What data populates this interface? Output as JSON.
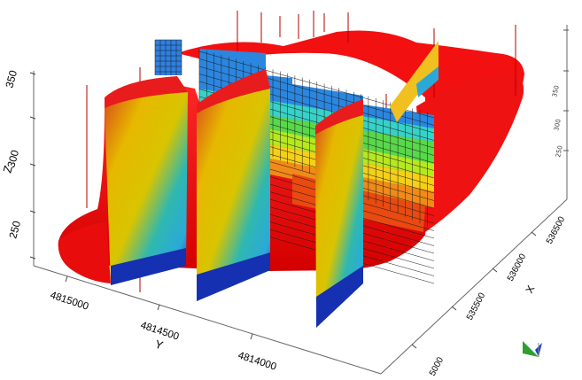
{
  "axes": {
    "z": {
      "label": "Z",
      "ticks": [
        "350",
        "300",
        "250"
      ],
      "right_ticks": [
        "350",
        "300",
        "250"
      ]
    },
    "y": {
      "label": "Y",
      "ticks": [
        "4815000",
        "4814500",
        "4814000"
      ]
    },
    "x": {
      "label": "X",
      "ticks": [
        "536500",
        "536000",
        "535500",
        "5000"
      ]
    }
  },
  "colors": {
    "body": "#ff1a1a",
    "body_dark": "#cc0000",
    "grid_line": "#1a1a1a",
    "orientation_green": "#2e9e2e",
    "orientation_blue": "#1f3fbf"
  },
  "icons": {
    "orientation": "orientation-axes-icon"
  }
}
